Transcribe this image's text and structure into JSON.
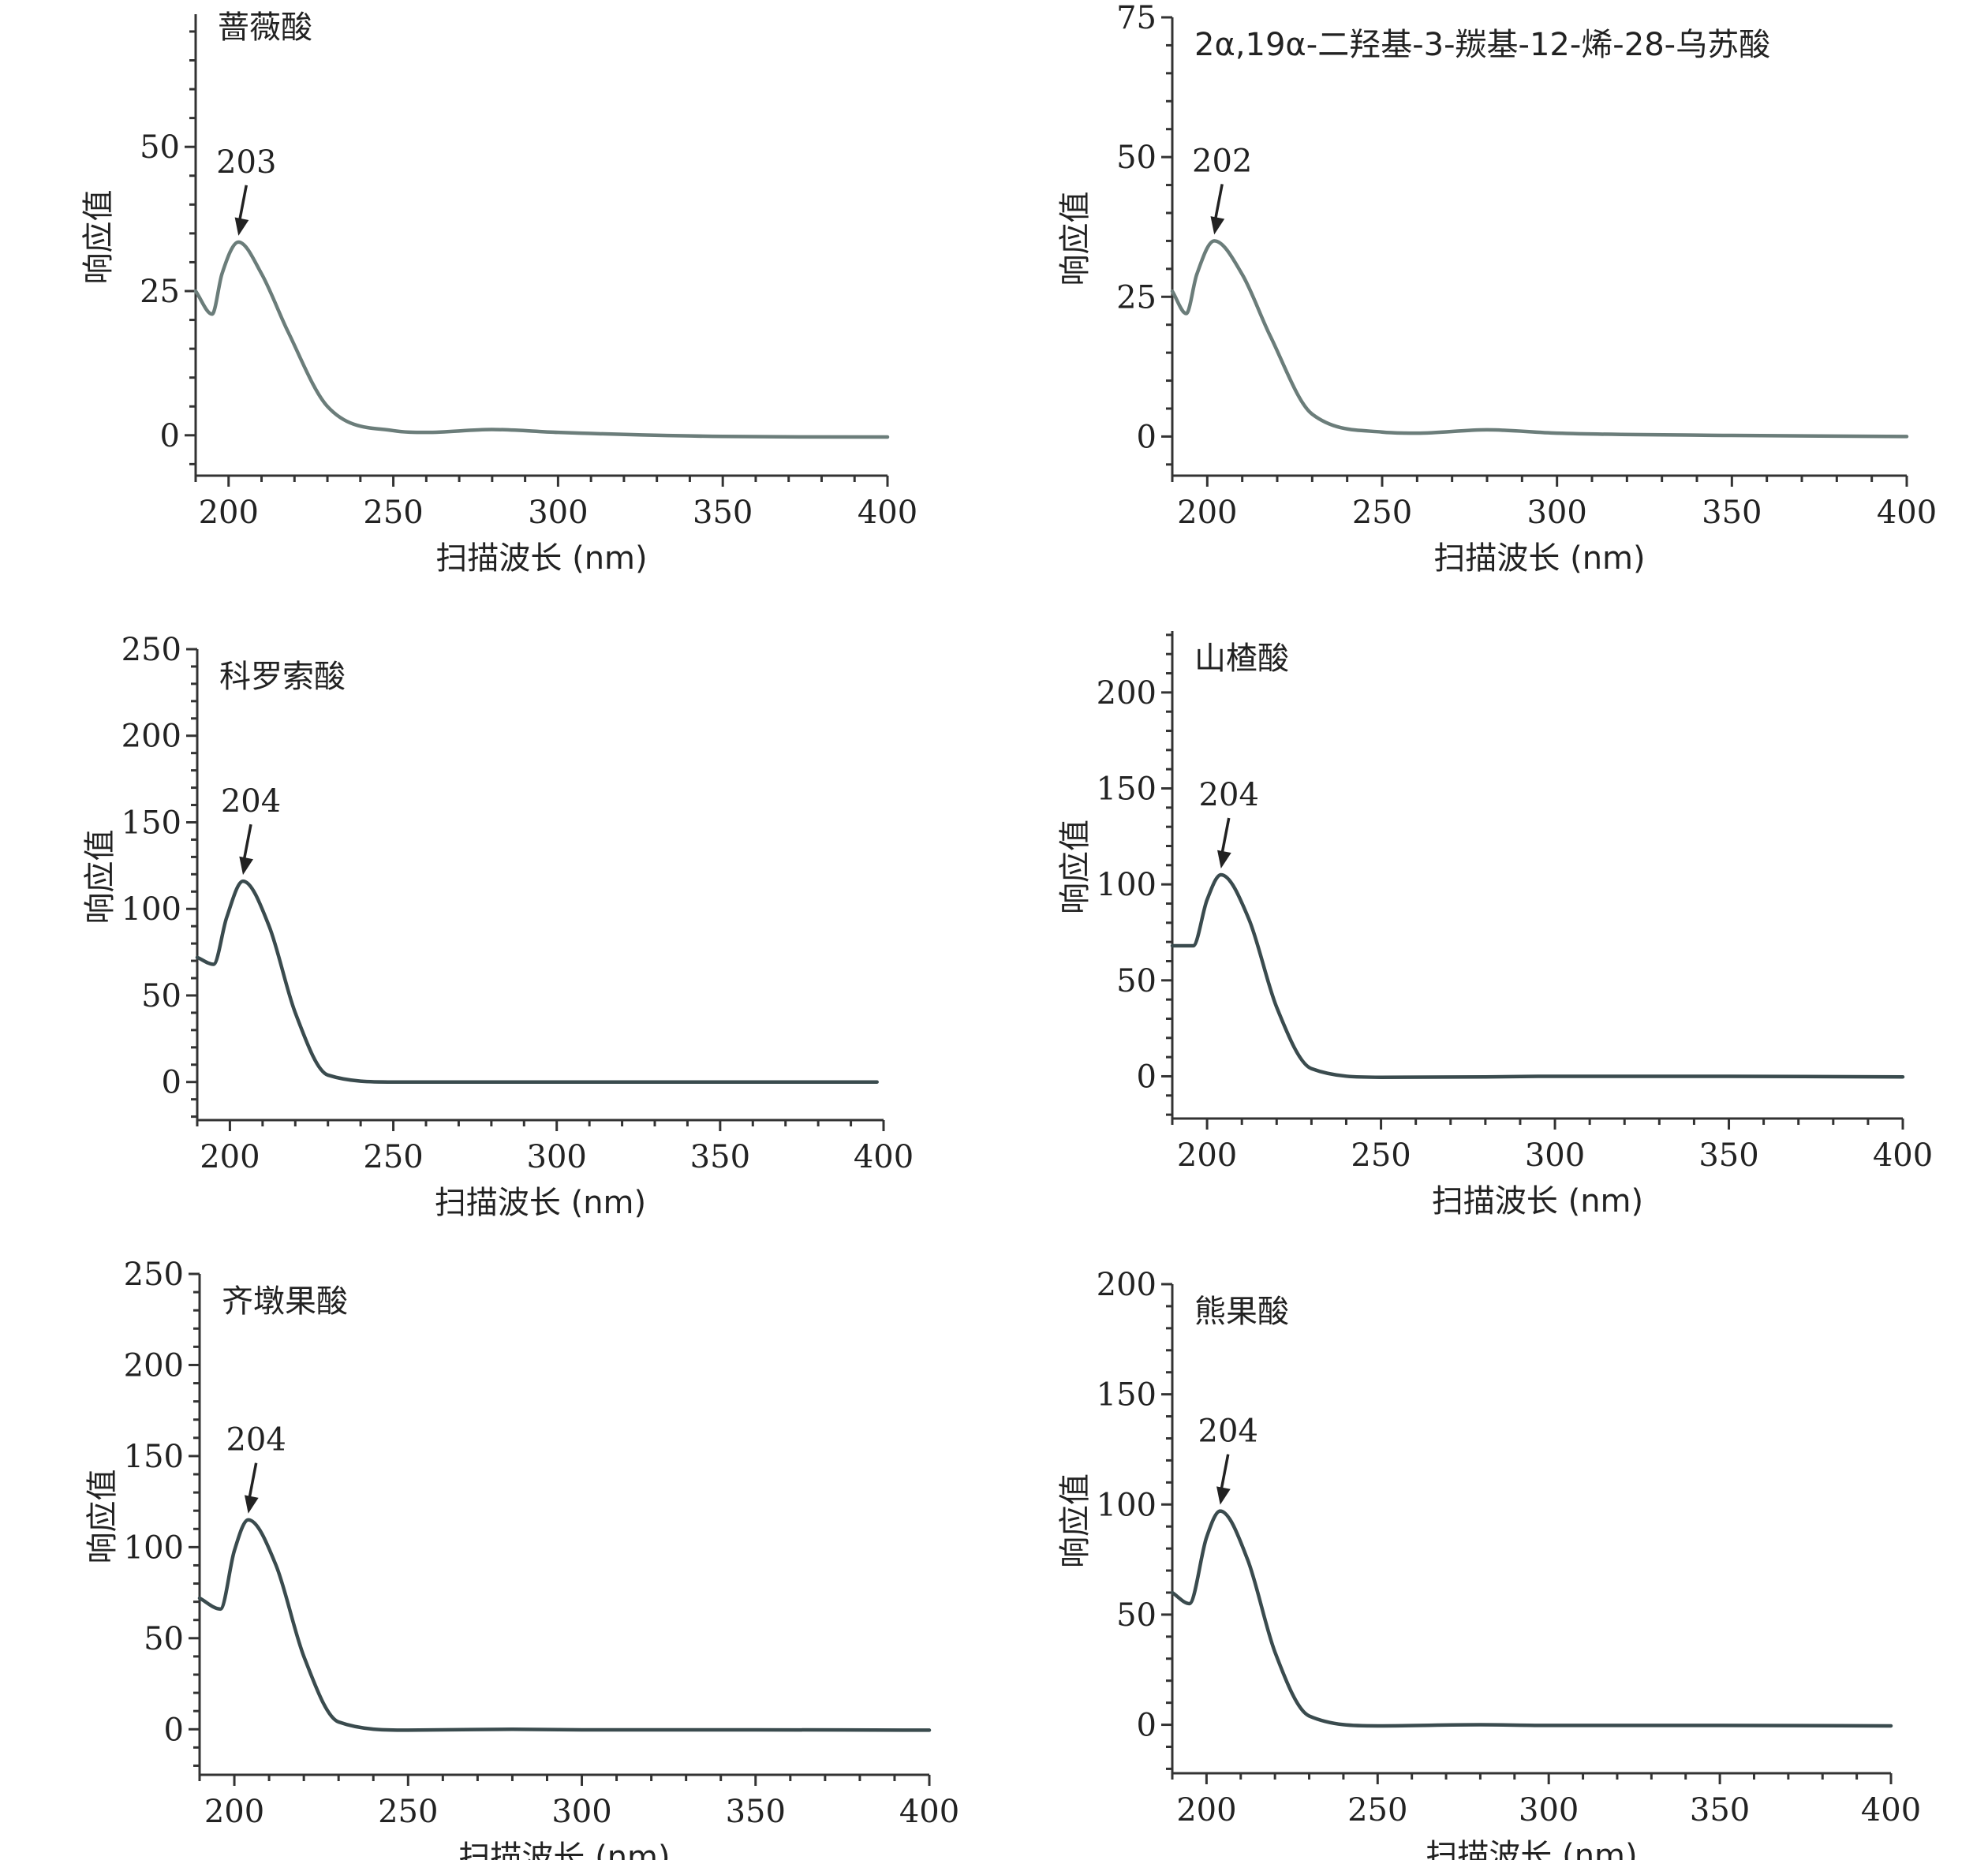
{
  "chart_data": [
    {
      "type": "line",
      "title": "蔷薇酸",
      "xlabel": "扫描波长 (nm)",
      "ylabel": "响应值",
      "xlim": [
        190,
        400
      ],
      "ylim": [
        -7,
        73
      ],
      "xticks": [
        "200",
        "250",
        "300",
        "350",
        "400"
      ],
      "yticks": [
        "0",
        "25",
        "50"
      ],
      "annotation": {
        "label": "203",
        "x": 203,
        "y": 33.5
      },
      "series": [
        {
          "x": [
            190,
            195,
            198,
            203,
            210,
            218,
            230,
            250,
            260,
            280,
            300,
            350,
            400
          ],
          "y": [
            25,
            21,
            28,
            33.5,
            28,
            18,
            5,
            0.8,
            0.5,
            1,
            0.5,
            -0.2,
            -0.3
          ]
        }
      ],
      "color": "#6b7d7a"
    },
    {
      "type": "line",
      "title": "2α,19α-二羟基-3-羰基-12-烯-28-乌苏酸",
      "xlabel": "扫描波长 (nm)",
      "ylabel": "响应值",
      "xlim": [
        190,
        400
      ],
      "ylim": [
        -7,
        75
      ],
      "xticks": [
        "200",
        "250",
        "300",
        "350",
        "400"
      ],
      "yticks": [
        "0",
        "25",
        "50",
        "75"
      ],
      "annotation": {
        "label": "202",
        "x": 202,
        "y": 35
      },
      "series": [
        {
          "x": [
            190,
            194,
            197,
            202,
            210,
            218,
            230,
            250,
            260,
            280,
            300,
            350,
            400
          ],
          "y": [
            26,
            22,
            29,
            35,
            29,
            18,
            4,
            0.8,
            0.6,
            1.2,
            0.6,
            0.2,
            0
          ]
        }
      ],
      "color": "#6b7d7a"
    },
    {
      "type": "line",
      "title": "科罗索酸",
      "xlabel": "扫描波长 (nm)",
      "ylabel": "响应值",
      "xlim": [
        190,
        400
      ],
      "ylim": [
        -22,
        250
      ],
      "xticks": [
        "200",
        "250",
        "300",
        "350",
        "400"
      ],
      "yticks": [
        "0",
        "50",
        "100",
        "150",
        "200",
        "250"
      ],
      "annotation": {
        "label": "204",
        "x": 204,
        "y": 116
      },
      "series": [
        {
          "x": [
            190,
            195,
            199,
            204,
            212,
            220,
            230,
            250,
            280,
            300,
            350,
            398
          ],
          "y": [
            72,
            68,
            95,
            116,
            90,
            40,
            4,
            0,
            0,
            0,
            0,
            0
          ]
        }
      ],
      "color": "#3a4b4e"
    },
    {
      "type": "line",
      "title": "山楂酸",
      "xlabel": "扫描波长 (nm)",
      "ylabel": "响应值",
      "xlim": [
        190,
        400
      ],
      "ylim": [
        -22,
        232
      ],
      "xticks": [
        "200",
        "250",
        "300",
        "350",
        "400"
      ],
      "yticks": [
        "0",
        "50",
        "100",
        "150",
        "200"
      ],
      "annotation": {
        "label": "204",
        "x": 204,
        "y": 105
      },
      "series": [
        {
          "x": [
            190,
            196,
            200,
            204,
            212,
            220,
            230,
            250,
            280,
            300,
            350,
            400
          ],
          "y": [
            68,
            68,
            92,
            105,
            82,
            36,
            4,
            -0.5,
            -0.3,
            0,
            0,
            -0.3
          ]
        }
      ],
      "color": "#3a4b4e"
    },
    {
      "type": "line",
      "title": "齐墩果酸",
      "xlabel": "扫描波长 (nm)",
      "ylabel": "响应值",
      "xlim": [
        190,
        400
      ],
      "ylim": [
        -25,
        250
      ],
      "xticks": [
        "200",
        "250",
        "300",
        "350",
        "400"
      ],
      "yticks": [
        "0",
        "50",
        "100",
        "150",
        "200",
        "250"
      ],
      "annotation": {
        "label": "204",
        "x": 204,
        "y": 115
      },
      "series": [
        {
          "x": [
            190,
            196,
            200,
            204,
            212,
            220,
            230,
            250,
            280,
            300,
            350,
            400
          ],
          "y": [
            72,
            66,
            98,
            115,
            90,
            40,
            4,
            -0.5,
            0,
            -0.3,
            -0.3,
            -0.5
          ]
        }
      ],
      "color": "#3a4b4e"
    },
    {
      "type": "line",
      "title": "熊果酸",
      "xlabel": "扫描波长 (nm)",
      "ylabel": "响应值",
      "xlim": [
        190,
        400
      ],
      "ylim": [
        -22,
        200
      ],
      "xticks": [
        "200",
        "250",
        "300",
        "350",
        "400"
      ],
      "yticks": [
        "0",
        "50",
        "100",
        "150",
        "200"
      ],
      "annotation": {
        "label": "204",
        "x": 204,
        "y": 97
      },
      "series": [
        {
          "x": [
            190,
            195,
            200,
            204,
            212,
            220,
            230,
            250,
            280,
            300,
            350,
            400
          ],
          "y": [
            60,
            55,
            85,
            97,
            75,
            33,
            4,
            -0.5,
            0,
            -0.3,
            -0.3,
            -0.5
          ]
        }
      ],
      "color": "#3a4b4e"
    }
  ]
}
